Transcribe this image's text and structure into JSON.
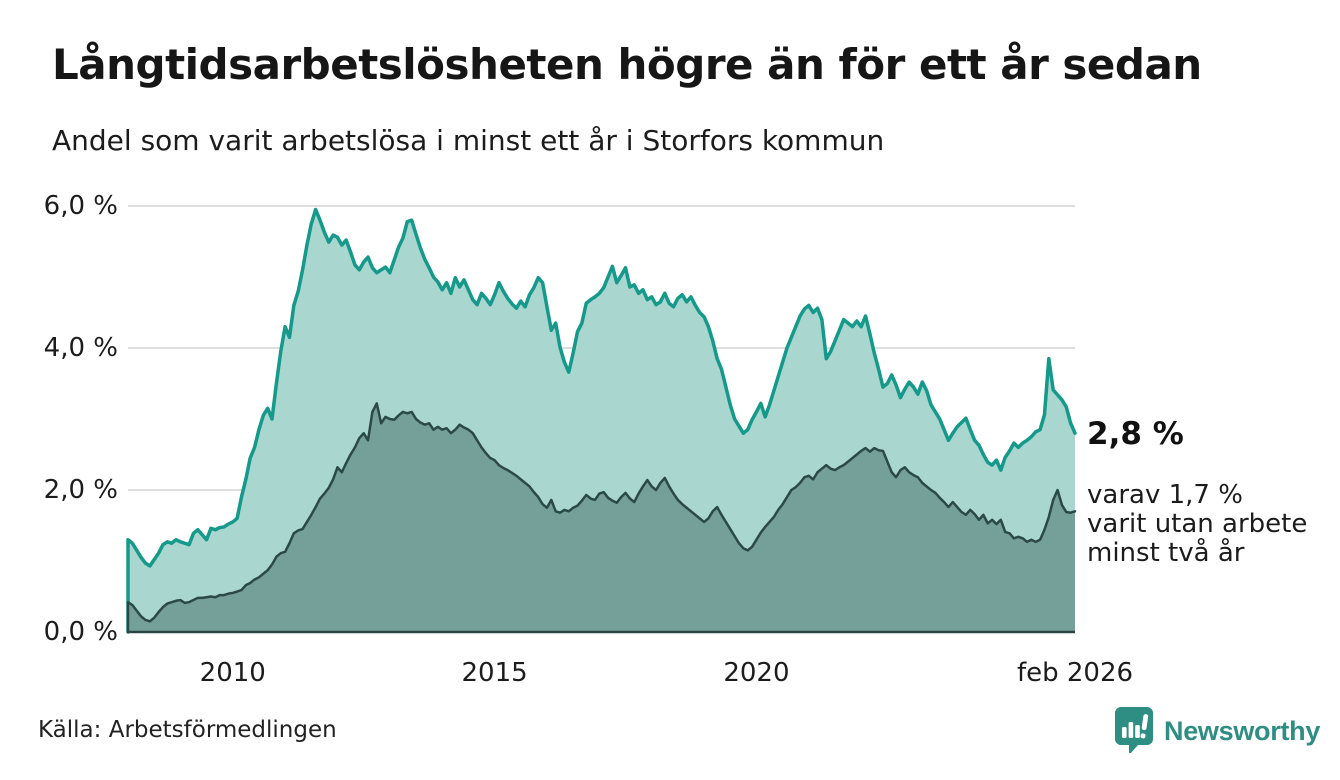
{
  "header": {
    "title": "Långtidsarbetslösheten högre än för ett år sedan",
    "subtitle": "Andel som varit arbetslösa i minst ett år i Storfors kommun"
  },
  "chart_data": {
    "type": "area",
    "title": "Långtidsarbetslösheten högre än för ett år sedan",
    "subtitle": "Andel som varit arbetslösa i minst ett år i Storfors kommun",
    "unit": "%",
    "frequency": "monthly",
    "x_start": "jan 2008",
    "x_end": "feb 2026",
    "grid": true,
    "legend": "none",
    "y_axis": {
      "min": 0,
      "max": 6,
      "ticks": [
        {
          "value": 0,
          "label": "0,0 %"
        },
        {
          "value": 2,
          "label": "2,0 %"
        },
        {
          "value": 4,
          "label": "4,0 %"
        },
        {
          "value": 6,
          "label": "6,0 %"
        }
      ]
    },
    "x_ticks": [
      {
        "label": "2010",
        "month_index": 24
      },
      {
        "label": "2015",
        "month_index": 84
      },
      {
        "label": "2020",
        "month_index": 144
      },
      {
        "label": "feb 2026",
        "month_index": 217
      }
    ],
    "series": [
      {
        "name": "Andel arbetslösa minst ett år",
        "stroke": "#14998b",
        "fill": "#a9d6cf",
        "stroke_width": 3.5,
        "values": [
          1.3,
          1.25,
          1.15,
          1.05,
          0.97,
          0.93,
          1.02,
          1.11,
          1.23,
          1.27,
          1.25,
          1.3,
          1.27,
          1.25,
          1.23,
          1.39,
          1.44,
          1.37,
          1.3,
          1.46,
          1.44,
          1.47,
          1.48,
          1.52,
          1.55,
          1.6,
          1.9,
          2.15,
          2.45,
          2.6,
          2.85,
          3.05,
          3.15,
          3.0,
          3.5,
          3.95,
          4.3,
          4.15,
          4.6,
          4.8,
          5.1,
          5.45,
          5.75,
          5.95,
          5.8,
          5.63,
          5.49,
          5.59,
          5.56,
          5.45,
          5.52,
          5.35,
          5.17,
          5.1,
          5.21,
          5.28,
          5.13,
          5.06,
          5.1,
          5.14,
          5.06,
          5.24,
          5.42,
          5.55,
          5.78,
          5.8,
          5.6,
          5.41,
          5.25,
          5.13,
          5.0,
          4.93,
          4.82,
          4.92,
          4.77,
          4.99,
          4.86,
          4.96,
          4.82,
          4.68,
          4.61,
          4.77,
          4.7,
          4.61,
          4.75,
          4.92,
          4.8,
          4.7,
          4.62,
          4.56,
          4.66,
          4.58,
          4.75,
          4.85,
          4.99,
          4.92,
          4.58,
          4.25,
          4.35,
          4.01,
          3.8,
          3.66,
          3.93,
          4.23,
          4.35,
          4.63,
          4.68,
          4.72,
          4.77,
          4.85,
          5.0,
          5.15,
          4.92,
          5.02,
          5.13,
          4.86,
          4.89,
          4.77,
          4.82,
          4.68,
          4.72,
          4.61,
          4.65,
          4.77,
          4.63,
          4.58,
          4.7,
          4.75,
          4.65,
          4.72,
          4.6,
          4.5,
          4.44,
          4.3,
          4.1,
          3.85,
          3.7,
          3.45,
          3.2,
          3.0,
          2.9,
          2.8,
          2.85,
          2.99,
          3.1,
          3.22,
          3.03,
          3.2,
          3.4,
          3.6,
          3.8,
          4.0,
          4.15,
          4.3,
          4.45,
          4.55,
          4.6,
          4.5,
          4.56,
          4.4,
          3.85,
          3.95,
          4.1,
          4.25,
          4.4,
          4.35,
          4.3,
          4.38,
          4.3,
          4.45,
          4.2,
          3.93,
          3.7,
          3.45,
          3.5,
          3.62,
          3.48,
          3.3,
          3.42,
          3.52,
          3.45,
          3.35,
          3.52,
          3.4,
          3.2,
          3.1,
          3.0,
          2.85,
          2.7,
          2.8,
          2.89,
          2.95,
          3.01,
          2.85,
          2.7,
          2.63,
          2.5,
          2.39,
          2.35,
          2.42,
          2.28,
          2.46,
          2.55,
          2.66,
          2.6,
          2.66,
          2.7,
          2.75,
          2.82,
          2.85,
          3.06,
          3.85,
          3.41,
          3.34,
          3.27,
          3.17,
          2.94,
          2.8
        ]
      },
      {
        "name": "Andel arbetslösa minst två år",
        "stroke": "#2b4a47",
        "fill": "#75a099",
        "stroke_width": 2.5,
        "values": [
          0.42,
          0.38,
          0.3,
          0.22,
          0.17,
          0.15,
          0.2,
          0.28,
          0.35,
          0.4,
          0.42,
          0.44,
          0.45,
          0.41,
          0.42,
          0.45,
          0.48,
          0.48,
          0.49,
          0.5,
          0.49,
          0.52,
          0.52,
          0.54,
          0.55,
          0.57,
          0.59,
          0.66,
          0.69,
          0.74,
          0.77,
          0.82,
          0.87,
          0.95,
          1.06,
          1.11,
          1.13,
          1.25,
          1.39,
          1.43,
          1.45,
          1.55,
          1.65,
          1.76,
          1.88,
          1.95,
          2.03,
          2.15,
          2.32,
          2.25,
          2.38,
          2.5,
          2.6,
          2.73,
          2.8,
          2.7,
          3.1,
          3.22,
          2.94,
          3.03,
          3.0,
          2.99,
          3.05,
          3.1,
          3.08,
          3.1,
          3.0,
          2.95,
          2.92,
          2.94,
          2.85,
          2.89,
          2.85,
          2.87,
          2.8,
          2.85,
          2.92,
          2.88,
          2.85,
          2.8,
          2.7,
          2.6,
          2.52,
          2.45,
          2.42,
          2.35,
          2.31,
          2.28,
          2.24,
          2.2,
          2.15,
          2.1,
          2.05,
          1.97,
          1.9,
          1.8,
          1.75,
          1.86,
          1.7,
          1.68,
          1.72,
          1.7,
          1.75,
          1.78,
          1.85,
          1.93,
          1.88,
          1.86,
          1.95,
          1.97,
          1.89,
          1.85,
          1.82,
          1.9,
          1.96,
          1.88,
          1.83,
          1.95,
          2.05,
          2.14,
          2.05,
          2.0,
          2.1,
          2.17,
          2.05,
          1.95,
          1.86,
          1.8,
          1.75,
          1.7,
          1.65,
          1.6,
          1.55,
          1.6,
          1.7,
          1.76,
          1.65,
          1.55,
          1.45,
          1.35,
          1.25,
          1.18,
          1.15,
          1.2,
          1.3,
          1.4,
          1.48,
          1.55,
          1.62,
          1.72,
          1.8,
          1.9,
          2.0,
          2.04,
          2.1,
          2.18,
          2.2,
          2.15,
          2.25,
          2.3,
          2.35,
          2.3,
          2.28,
          2.32,
          2.35,
          2.4,
          2.45,
          2.5,
          2.55,
          2.59,
          2.54,
          2.59,
          2.56,
          2.55,
          2.4,
          2.25,
          2.18,
          2.28,
          2.32,
          2.25,
          2.21,
          2.18,
          2.1,
          2.05,
          2.0,
          1.96,
          1.89,
          1.83,
          1.76,
          1.83,
          1.76,
          1.69,
          1.65,
          1.72,
          1.66,
          1.58,
          1.65,
          1.53,
          1.58,
          1.52,
          1.58,
          1.41,
          1.39,
          1.32,
          1.34,
          1.32,
          1.27,
          1.3,
          1.27,
          1.3,
          1.44,
          1.62,
          1.86,
          2.0,
          1.79,
          1.69,
          1.68,
          1.7
        ]
      }
    ],
    "annotations": {
      "latest_total_label": "2,8 %",
      "latest_total_value": 2.8,
      "note_lines": [
        "varav 1,7 %",
        "varit utan arbete",
        "minst två år"
      ],
      "latest_two_year_value": 1.7
    },
    "colors": {
      "gridline": "#dedede",
      "baseline": "#2a4643",
      "background": "#ffffff",
      "text": "#1a1a1a"
    }
  },
  "footer": {
    "source": "Källa: Arbetsförmedlingen",
    "brand": "Newsworthy",
    "brand_color": "#2f8e84",
    "brand_icon": "newsworthy-chart-bubble"
  }
}
